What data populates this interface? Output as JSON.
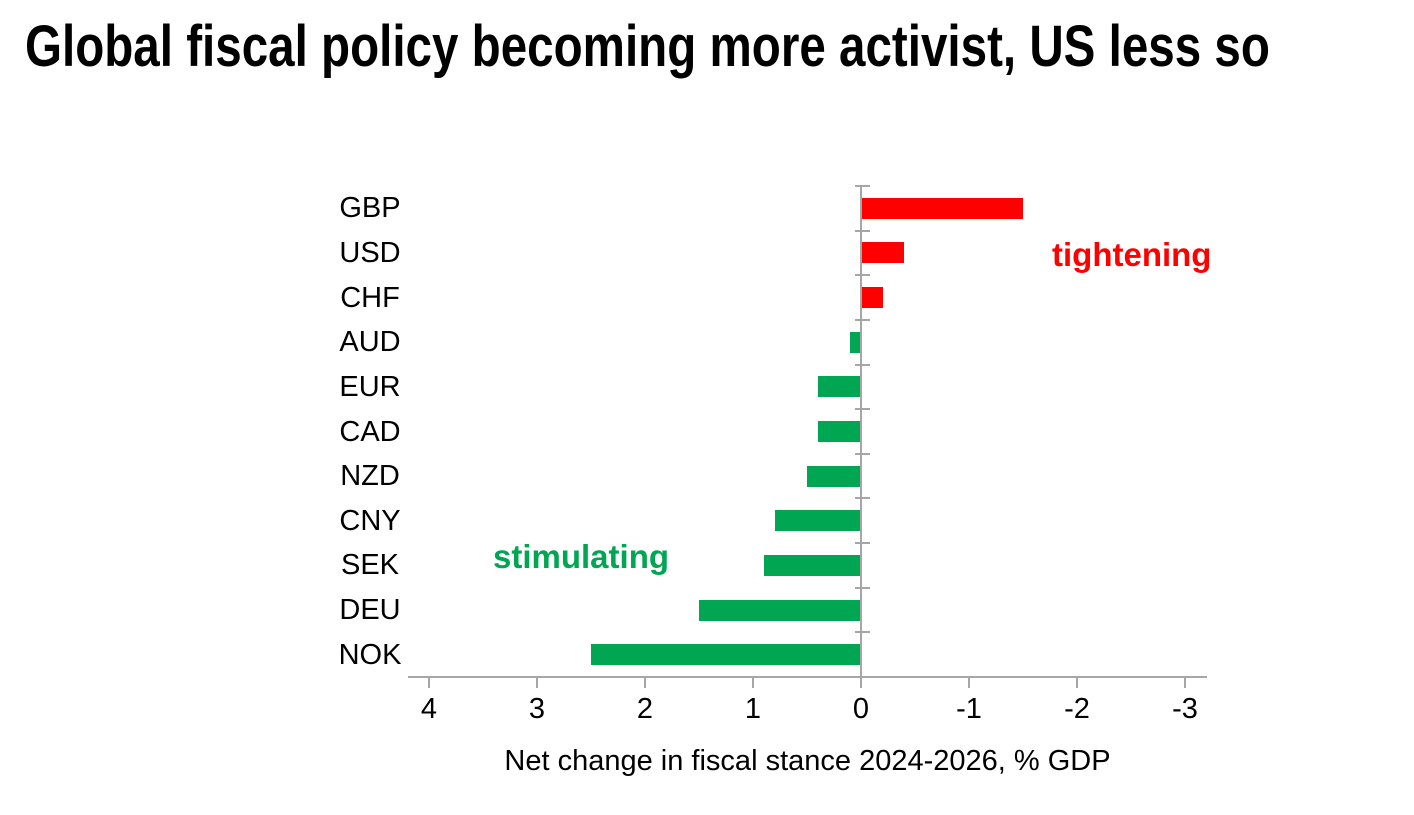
{
  "title": "Global fiscal policy becoming more activist, US less so",
  "chart_data": {
    "type": "bar",
    "orientation": "horizontal",
    "categories": [
      "GBP",
      "USD",
      "CHF",
      "AUD",
      "EUR",
      "CAD",
      "NZD",
      "CNY",
      "SEK",
      "DEU",
      "NOK"
    ],
    "values": [
      -1.5,
      -0.4,
      -0.2,
      0.1,
      0.4,
      0.4,
      0.5,
      0.8,
      0.9,
      1.5,
      2.5
    ],
    "title": "Global fiscal policy becoming more activist, US less so",
    "xlabel": "Net change in fiscal stance 2024-2026, % GDP",
    "ylabel": "",
    "x_ticks": [
      4,
      3,
      2,
      1,
      0,
      -1,
      -2,
      -3
    ],
    "x_tick_labels": [
      "4",
      "3",
      "2",
      "1",
      "0",
      "-1",
      "-2",
      "-3"
    ],
    "xlim": [
      4,
      -3
    ],
    "axis_reversed": true,
    "grid": false,
    "legend": false,
    "annotations": {
      "tightening": {
        "text": "tightening",
        "color": "#ff0000",
        "side": "negative"
      },
      "stimulating": {
        "text": "stimulating",
        "color": "#00a651",
        "side": "positive"
      }
    },
    "colors": {
      "positive_bar": "#00a651",
      "negative_bar": "#ff0000",
      "axis": "#a6a6a6",
      "text": "#000000"
    }
  }
}
